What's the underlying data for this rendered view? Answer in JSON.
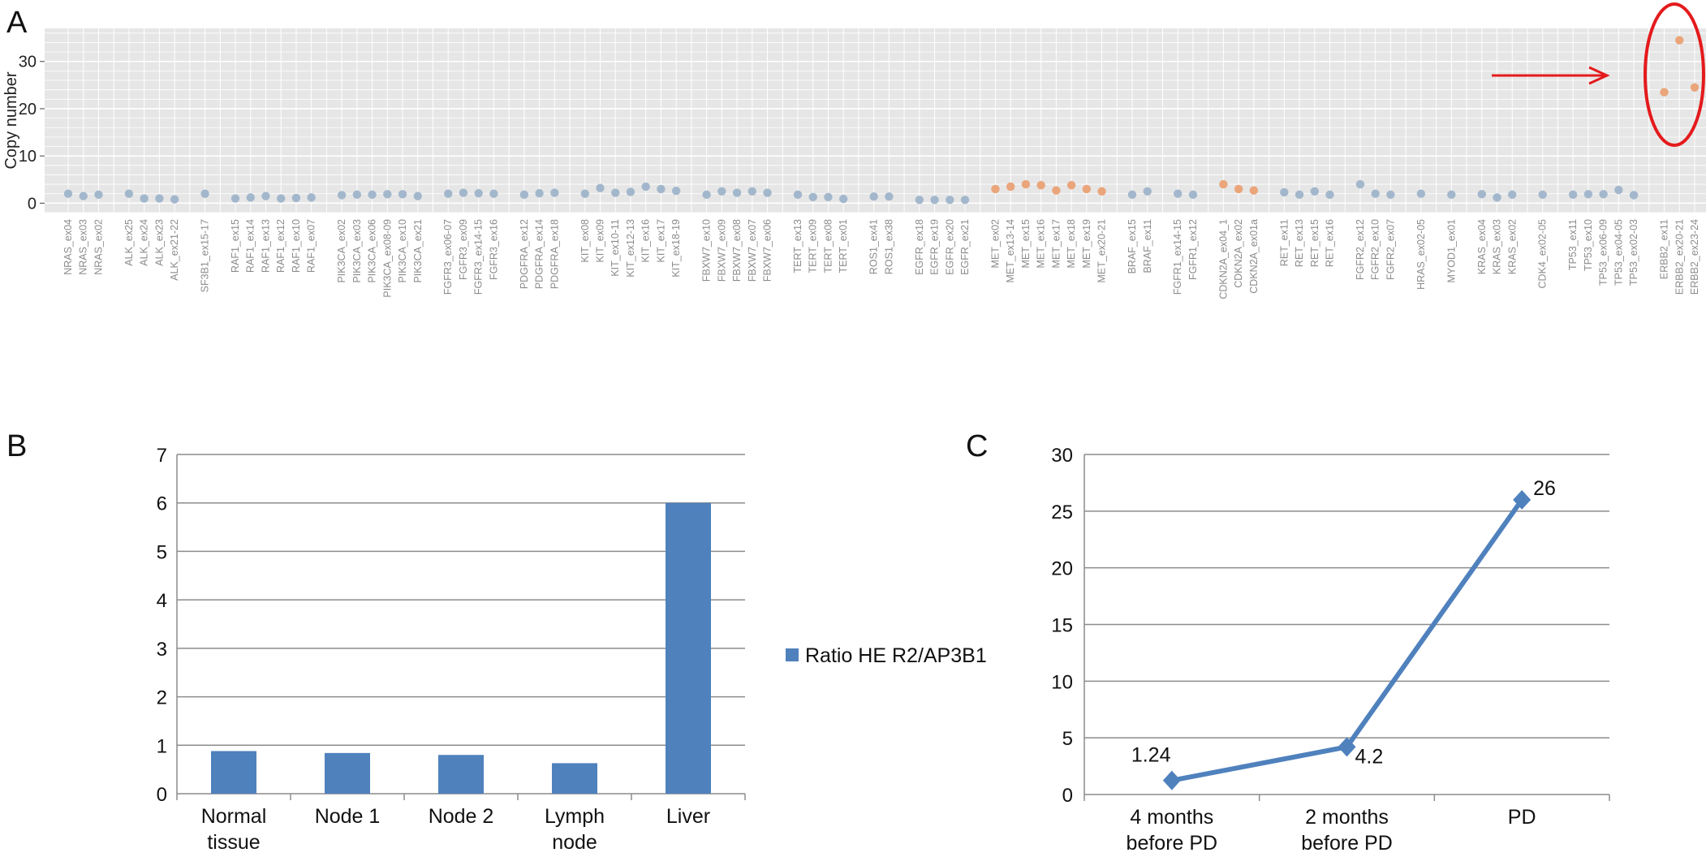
{
  "chart_data": [
    {
      "type": "scatter",
      "panel": "A",
      "ylabel": "Copy number",
      "xlabel": "",
      "ylim": [
        -2,
        37
      ],
      "yticks": [
        0,
        10,
        20,
        30
      ],
      "grid": true,
      "colors": {
        "normal": "#a3b7cc",
        "altered": "#eaa57b",
        "highlight": "#e41a1c",
        "background": "#e6e6e6"
      },
      "groups": [
        {
          "gene": "NRAS",
          "labels": [
            "NRAS_ex04",
            "NRAS_ex03",
            "NRAS_ex02"
          ],
          "values": [
            2.0,
            1.5,
            1.8
          ],
          "altered": false
        },
        {
          "gene": "ALK",
          "labels": [
            "ALK_ex25",
            "ALK_ex24",
            "ALK_ex23",
            "ALK_ex21-22"
          ],
          "values": [
            2.0,
            1.0,
            1.0,
            0.8
          ],
          "altered": false
        },
        {
          "gene": "SF3B1",
          "labels": [
            "SF3B1_ex15-17"
          ],
          "values": [
            2.0
          ],
          "altered": false
        },
        {
          "gene": "RAF1",
          "labels": [
            "RAF1_ex15",
            "RAF1_ex14",
            "RAF1_ex13",
            "RAF1_ex12",
            "RAF1_ex10",
            "RAF1_ex07"
          ],
          "values": [
            1.0,
            1.2,
            1.5,
            1.0,
            1.1,
            1.2
          ],
          "altered": false
        },
        {
          "gene": "PIK3CA",
          "labels": [
            "PIK3CA_ex02",
            "PIK3CA_ex03",
            "PIK3CA_ex06",
            "PIK3CA_ex08-09",
            "PIK3CA_ex10",
            "PIK3CA_ex21"
          ],
          "values": [
            1.7,
            1.8,
            1.8,
            1.9,
            1.9,
            1.5
          ],
          "altered": false
        },
        {
          "gene": "FGFR3",
          "labels": [
            "FGFR3_ex06-07",
            "FGFR3_ex09",
            "FGFR3_ex14-15",
            "FGFR3_ex16"
          ],
          "values": [
            2.0,
            2.2,
            2.1,
            2.0
          ],
          "altered": false
        },
        {
          "gene": "PDGFRA",
          "labels": [
            "PDGFRA_ex12",
            "PDGFRA_ex14",
            "PDGFRA_ex18"
          ],
          "values": [
            1.8,
            2.1,
            2.2
          ],
          "altered": false
        },
        {
          "gene": "KIT",
          "labels": [
            "KIT_ex08",
            "KIT_ex09",
            "KIT_ex10-11",
            "KIT_ex12-13",
            "KIT_ex16",
            "KIT_ex17",
            "KIT_ex18-19"
          ],
          "values": [
            2.0,
            3.2,
            2.2,
            2.4,
            3.5,
            3.0,
            2.6
          ],
          "altered": false
        },
        {
          "gene": "FBXW7",
          "labels": [
            "FBXW7_ex10",
            "FBXW7_ex09",
            "FBXW7_ex08",
            "FBXW7_ex07",
            "FBXW7_ex06"
          ],
          "values": [
            1.8,
            2.5,
            2.2,
            2.5,
            2.2
          ],
          "altered": false
        },
        {
          "gene": "TERT",
          "labels": [
            "TERT_ex13",
            "TERT_ex09",
            "TERT_ex08",
            "TERT_ex01"
          ],
          "values": [
            1.8,
            1.3,
            1.3,
            0.9
          ],
          "altered": false
        },
        {
          "gene": "ROS1",
          "labels": [
            "ROS1_ex41",
            "ROS1_ex38"
          ],
          "values": [
            1.4,
            1.4
          ],
          "altered": false
        },
        {
          "gene": "EGFR",
          "labels": [
            "EGFR_ex18",
            "EGFR_ex19",
            "EGFR_ex20",
            "EGFR_ex21"
          ],
          "values": [
            0.7,
            0.7,
            0.7,
            0.7
          ],
          "altered": false
        },
        {
          "gene": "MET",
          "labels": [
            "MET_ex02",
            "MET_ex13-14",
            "MET_ex15",
            "MET_ex16",
            "MET_ex17",
            "MET_ex18",
            "MET_ex19",
            "MET_ex20-21"
          ],
          "values": [
            3.0,
            3.5,
            4.0,
            3.8,
            2.7,
            3.8,
            3.0,
            2.5
          ],
          "altered": true
        },
        {
          "gene": "BRAF",
          "labels": [
            "BRAF_ex15",
            "BRAF_ex11"
          ],
          "values": [
            1.8,
            2.5
          ],
          "altered": false
        },
        {
          "gene": "FGFR1",
          "labels": [
            "FGFR1_ex14-15",
            "FGFR1_ex12"
          ],
          "values": [
            2.0,
            1.8
          ],
          "altered": false
        },
        {
          "gene": "CDKN2A",
          "labels": [
            "CDKN2A_ex04_1",
            "CDKN2A_ex02",
            "CDKN2A_ex01a"
          ],
          "values": [
            4.0,
            3.0,
            2.7
          ],
          "altered": true
        },
        {
          "gene": "RET",
          "labels": [
            "RET_ex11",
            "RET_ex13",
            "RET_ex15",
            "RET_ex16"
          ],
          "values": [
            2.3,
            1.8,
            2.5,
            1.8
          ],
          "altered": false
        },
        {
          "gene": "FGFR2",
          "labels": [
            "FGFR2_ex12",
            "FGFR2_ex10",
            "FGFR2_ex07"
          ],
          "values": [
            4.0,
            2.0,
            1.8
          ],
          "altered": false
        },
        {
          "gene": "HRAS",
          "labels": [
            "HRAS_ex02-05"
          ],
          "values": [
            2.0
          ],
          "altered": false
        },
        {
          "gene": "MYOD1",
          "labels": [
            "MYOD1_ex01"
          ],
          "values": [
            1.8
          ],
          "altered": false
        },
        {
          "gene": "KRAS",
          "labels": [
            "KRAS_ex04",
            "KRAS_ex03",
            "KRAS_ex02"
          ],
          "values": [
            1.9,
            1.2,
            1.8
          ],
          "altered": false
        },
        {
          "gene": "CDK4",
          "labels": [
            "CDK4_ex02-05"
          ],
          "values": [
            1.8
          ],
          "altered": false
        },
        {
          "gene": "TP53",
          "labels": [
            "TP53_ex11",
            "TP53_ex10",
            "TP53_ex06-09",
            "TP53_ex04-05",
            "TP53_ex02-03"
          ],
          "values": [
            1.8,
            1.9,
            1.9,
            2.8,
            1.7
          ],
          "altered": false
        },
        {
          "gene": "ERBB2",
          "labels": [
            "ERBB2_ex11",
            "ERBB2_ex20-21",
            "ERBB2_ex23-24"
          ],
          "values": [
            23.5,
            34.5,
            24.5
          ],
          "altered": true
        }
      ]
    },
    {
      "type": "bar",
      "panel": "B",
      "categories": [
        "Normal tissue",
        "Node 1",
        "Node 2",
        "Lymph node",
        "Liver"
      ],
      "category_lines": [
        [
          "Normal",
          "tissue"
        ],
        [
          "Node 1"
        ],
        [
          "Node 2"
        ],
        [
          "Lymph",
          "node"
        ],
        [
          "Liver"
        ]
      ],
      "series": [
        {
          "name": "Ratio HE R2/AP3B1",
          "values": [
            0.88,
            0.84,
            0.8,
            0.63,
            6.0
          ]
        }
      ],
      "ylim": [
        0,
        7
      ],
      "yticks": [
        0,
        1,
        2,
        3,
        4,
        5,
        6,
        7
      ],
      "grid": true,
      "legend": "right",
      "color": "#4f81bd"
    },
    {
      "type": "line",
      "panel": "C",
      "categories": [
        "4 months before PD",
        "2 months before PD",
        "PD"
      ],
      "category_lines": [
        [
          "4 months",
          "before PD"
        ],
        [
          "2 months",
          "before PD"
        ],
        [
          "PD"
        ]
      ],
      "series": [
        {
          "values": [
            1.24,
            4.2,
            26
          ],
          "data_labels": [
            "1.24",
            "4.2",
            "26"
          ]
        }
      ],
      "ylim": [
        0,
        30
      ],
      "yticks": [
        0,
        5,
        10,
        15,
        20,
        25,
        30
      ],
      "grid": true,
      "color": "#4f81bd"
    }
  ]
}
